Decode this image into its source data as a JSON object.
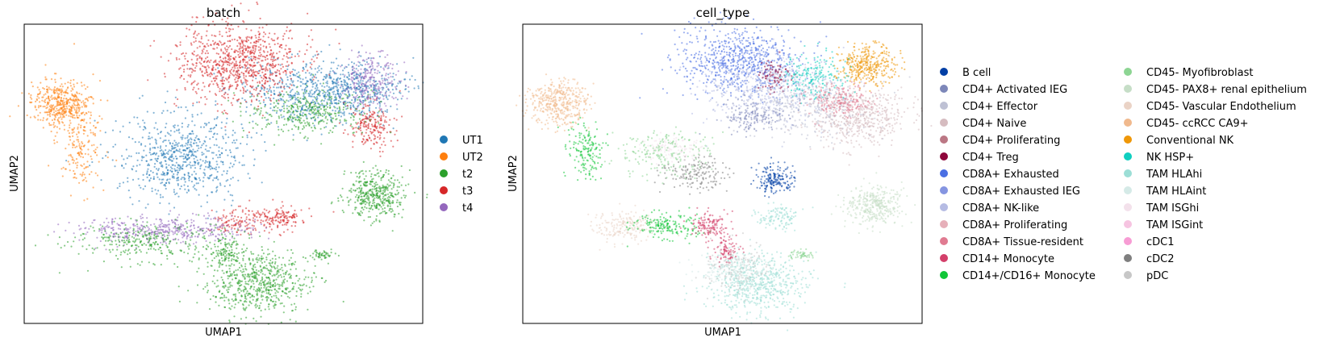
{
  "chart_data": [
    {
      "type": "scatter",
      "title": "batch",
      "xlabel": "UMAP1",
      "ylabel": "UMAP2",
      "grid": false,
      "legend_placement": "right",
      "series": [
        {
          "name": "UT1",
          "color": "#1f77b4"
        },
        {
          "name": "UT2",
          "color": "#ff7f0e"
        },
        {
          "name": "t2",
          "color": "#2ca02c"
        },
        {
          "name": "t3",
          "color": "#d62728"
        },
        {
          "name": "t4",
          "color": "#9467bd"
        }
      ]
    },
    {
      "type": "scatter",
      "title": "cell_type",
      "xlabel": "UMAP1",
      "ylabel": "UMAP2",
      "grid": false,
      "legend_placement": "right",
      "series": [
        {
          "name": "B cell",
          "color": "#023fa5"
        },
        {
          "name": "CD4+ Activated IEG",
          "color": "#7d87b9"
        },
        {
          "name": "CD4+ Effector",
          "color": "#bec1d4"
        },
        {
          "name": "CD4+ Naive",
          "color": "#d6bcc0"
        },
        {
          "name": "CD4+ Proliferating",
          "color": "#bb7784"
        },
        {
          "name": "CD4+ Treg",
          "color": "#8e063b"
        },
        {
          "name": "CD8A+ Exhausted",
          "color": "#4a6fe3"
        },
        {
          "name": "CD8A+ Exhausted IEG",
          "color": "#8595e1"
        },
        {
          "name": "CD8A+ NK-like",
          "color": "#b5bbe3"
        },
        {
          "name": "CD8A+ Proliferating",
          "color": "#e6afb9"
        },
        {
          "name": "CD8A+ Tissue-resident",
          "color": "#e07b91"
        },
        {
          "name": "CD14+ Monocyte",
          "color": "#d33f6a"
        },
        {
          "name": "CD14+/CD16+ Monocyte",
          "color": "#11c638"
        },
        {
          "name": "CD45- Myofibroblast",
          "color": "#8dd593"
        },
        {
          "name": "CD45- PAX8+ renal epithelium",
          "color": "#c6dec7"
        },
        {
          "name": "CD45- Vascular Endothelium",
          "color": "#ead3c6"
        },
        {
          "name": "CD45- ccRCC CA9+",
          "color": "#f0b98d"
        },
        {
          "name": "Conventional NK",
          "color": "#ef9708"
        },
        {
          "name": "NK HSP+",
          "color": "#0fcfc0"
        },
        {
          "name": "TAM HLAhi",
          "color": "#9cded6"
        },
        {
          "name": "TAM HLAint",
          "color": "#d5eae7"
        },
        {
          "name": "TAM ISGhi",
          "color": "#f3e1eb"
        },
        {
          "name": "TAM ISGint",
          "color": "#f6c4e1"
        },
        {
          "name": "cDC1",
          "color": "#f79cd4"
        },
        {
          "name": "cDC2",
          "color": "#7f7f7f"
        },
        {
          "name": "pDC",
          "color": "#c7c7c7"
        }
      ]
    }
  ]
}
